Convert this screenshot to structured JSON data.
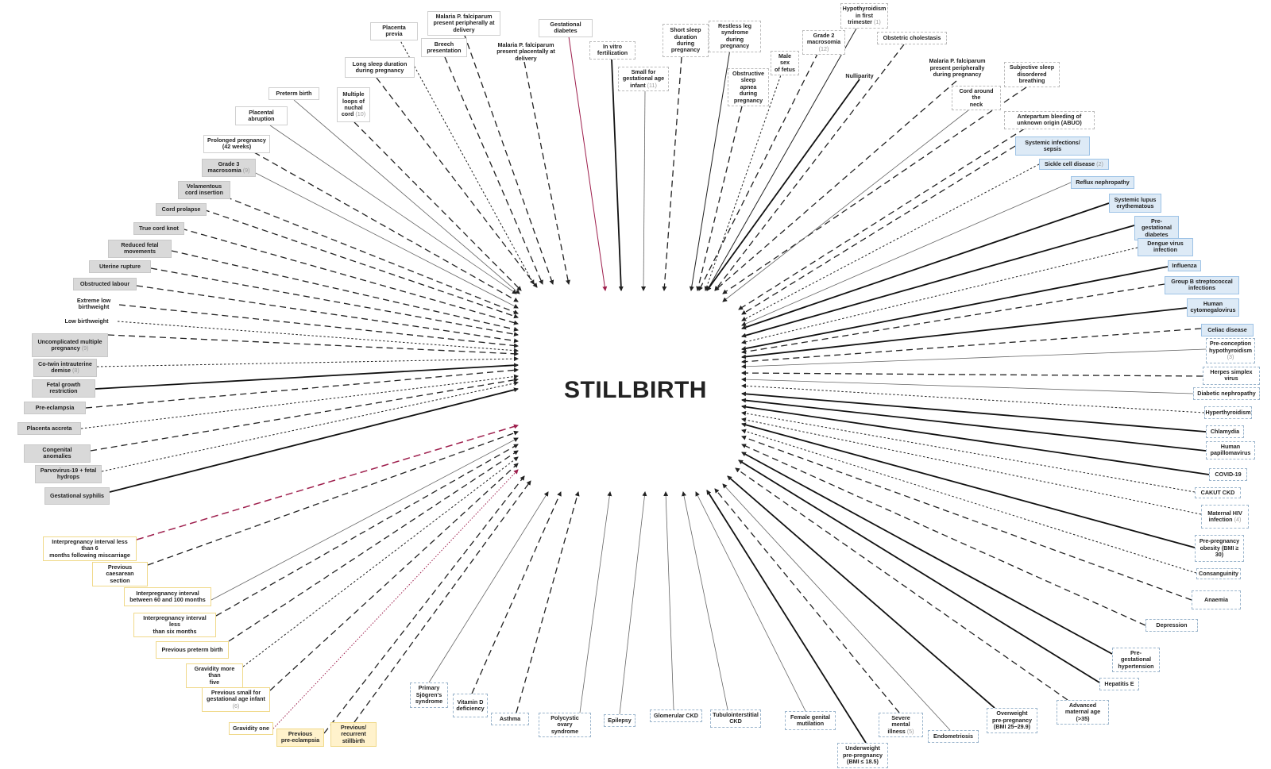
{
  "title": "STILLBIRTH",
  "nodes": {
    "placenta_previa": {
      "label": "Placenta previa"
    },
    "malaria_peripheral_delivery": {
      "label": "Malaria P. falciparum\npresent peripherally at\ndelivery"
    },
    "gestational_diabetes": {
      "label": "Gestational\ndiabetes"
    },
    "breech": {
      "label": "Breech\npresentation"
    },
    "malaria_placental": {
      "label": "Malaria P. falciparum\npresent placentally at\ndelivery"
    },
    "ivf": {
      "label": "In vitro\nfertilization"
    },
    "short_sleep": {
      "label": "Short sleep\nduration\nduring\npregnancy"
    },
    "restless_leg": {
      "label": "Restless leg\nsyndrome during\npregnancy"
    },
    "hypothyroidism_first": {
      "label": "Hypothyroidism\nin first\ntrimester",
      "count": "(1)"
    },
    "grade2_macrosomia": {
      "label": "Grade 2\nmacrosomia",
      "count": "(12)"
    },
    "obstetric_cholestasis": {
      "label": "Obstetric cholestasis"
    },
    "long_sleep": {
      "label": "Long sleep duration\nduring pregnancy"
    },
    "sga": {
      "label": "Small for\ngestational age\ninfant",
      "count": "(11)"
    },
    "male_sex": {
      "label": "Male sex\nof fetus"
    },
    "osa": {
      "label": "Obstructive\nsleep\napnea\nduring\npregnancy"
    },
    "nulliparity": {
      "label": "Nulliparity"
    },
    "malaria_peripheral_pregnancy": {
      "label": "Malaria P. falciparum\npresent peripherally\nduring pregnancy"
    },
    "subjective_sleep": {
      "label": "Subjective sleep\ndisordered\nbreathing"
    },
    "preterm_birth": {
      "label": "Preterm birth"
    },
    "multiple_loops": {
      "label": "Multiple\nloops of\nnuchal\ncord",
      "count": "(10)"
    },
    "cord_around_neck": {
      "label": "Cord around the\nneck"
    },
    "abuo": {
      "label": "Antepartum bleeding of\nunknown origin (ABUO)"
    },
    "placental_abruption": {
      "label": "Placental\nabruption"
    },
    "prolonged_pregnancy": {
      "label": "Prolonged pregnancy\n(42 weeks)"
    },
    "grade3_macrosomia": {
      "label": "Grade 3\nmacrosomia",
      "count": "(9)"
    },
    "velamentous": {
      "label": "Velamentous\ncord insertion"
    },
    "cord_prolapse": {
      "label": "Cord prolapse"
    },
    "true_knot": {
      "label": "True cord knot"
    },
    "reduced_movements": {
      "label": "Reduced fetal\nmovements"
    },
    "uterine_rupture": {
      "label": "Uterine rupture"
    },
    "obstructed_labour": {
      "label": "Obstructed labour"
    },
    "extreme_lbw": {
      "label": "Extreme low\nbirthweight"
    },
    "lbw": {
      "label": "Low birthweight"
    },
    "uncomplicated_multiple": {
      "label": "Uncomplicated multiple\npregnancy",
      "count": "(9)"
    },
    "cotwin_demise": {
      "label": "Co-twin intrauterine\ndemise",
      "count": "(8)"
    },
    "fgr": {
      "label": "Fetal growth\nrestriction"
    },
    "preeclampsia": {
      "label": "Pre-eclampsia"
    },
    "placenta_accreta": {
      "label": "Placenta accreta"
    },
    "congenital_anomalies": {
      "label": "Congenital anomalies"
    },
    "parvovirus": {
      "label": "Parvovirus-19 + fetal\nhydrops"
    },
    "gestational_syphilis": {
      "label": "Gestational syphilis"
    },
    "systemic_infections": {
      "label": "Systemic infections/\nsepsis"
    },
    "sickle_cell": {
      "label": "Sickle cell disease",
      "count": "(2)"
    },
    "reflux_nephropathy": {
      "label": "Reflux nephropathy"
    },
    "sle": {
      "label": "Systemic lupus\nerythematous"
    },
    "pregestational_diabetes": {
      "label": "Pre-gestational\ndiabetes"
    },
    "dengue": {
      "label": "Dengue virus\ninfection"
    },
    "influenza": {
      "label": "Influenza"
    },
    "gbs": {
      "label": "Group B streptococcal\ninfections"
    },
    "cmv": {
      "label": "Human\ncytomegalovirus"
    },
    "celiac": {
      "label": "Celiac disease"
    },
    "preconception_hypo": {
      "label": "Pre-conception\nhypothyroidism",
      "count": "(3)"
    },
    "herpes": {
      "label": "Herpes simplex\nvirus"
    },
    "diabetic_nephropathy": {
      "label": "Diabetic nephropathy"
    },
    "hyperthyroidism": {
      "label": "Hyperthyroidism"
    },
    "chlamydia": {
      "label": "Chlamydia"
    },
    "hpv": {
      "label": "Human\npapillomavirus"
    },
    "covid": {
      "label": "COVID-19"
    },
    "cakut": {
      "label": "CAKUT CKD"
    },
    "hiv": {
      "label": "Maternal HIV\ninfection",
      "count": "(4)"
    },
    "obesity": {
      "label": "Pre-pregnancy\nobesity (BMI ≥\n30)"
    },
    "consanguinity": {
      "label": "Consanguinity"
    },
    "anaemia": {
      "label": "Anaemia"
    },
    "depression": {
      "label": "Depression"
    },
    "pregest_hypertension": {
      "label": "Pre-gestational\nhypertension"
    },
    "hepatitis_e": {
      "label": "Hepatitis E"
    },
    "advanced_age": {
      "label": "Advanced\nmaternal age (>35)"
    },
    "overweight": {
      "label": "Overweight\npre-pregnancy\n(BMI 25−29.9)"
    },
    "endometriosis": {
      "label": "Endometriosis"
    },
    "underweight": {
      "label": "Underweight\npre-pregnancy\n(BMI ≤ 18.5)"
    },
    "severe_mental": {
      "label": "Severe mental\nillness",
      "count": "(5)"
    },
    "fgm": {
      "label": "Female genital\nmutilation"
    },
    "tubulointerstitial": {
      "label": "Tubulointerstitial\nCKD"
    },
    "glomerular": {
      "label": "Glomerular CKD"
    },
    "epilepsy": {
      "label": "Epilepsy"
    },
    "pcos": {
      "label": "Polycystic ovary\nsyndrome"
    },
    "asthma": {
      "label": "Asthma"
    },
    "vitd": {
      "label": "Vitamin D\ndeficiency"
    },
    "sjogren": {
      "label": "Primary\nSjögren's\nsyndrome"
    },
    "ipi_miscarriage": {
      "label": "Interpregnancy interval less than 6\nmonths following miscarriage"
    },
    "prev_cs": {
      "label": "Previous\ncaesarean section"
    },
    "ipi_60_100": {
      "label": "Interpregnancy interval\nbetween 60 and 100 months"
    },
    "ipi_6": {
      "label": "Interpregnancy interval less\nthan six months"
    },
    "prev_preterm": {
      "label": "Previous preterm birth"
    },
    "gravidity_five": {
      "label": "Gravidity more than\nfive"
    },
    "prev_sga": {
      "label": "Previous small for\ngestational age infant",
      "count": "(6)"
    },
    "gravidity_one": {
      "label": "Gravidity one"
    },
    "prev_preeclampsia": {
      "label": "Previous\npre-eclampsia"
    },
    "prev_stillbirth": {
      "label": "Previous/\nrecurrent\nstillbirth"
    }
  },
  "colors": {
    "line": "#222222",
    "line_gray": "#777777",
    "line_crimson": "#9e1f4d",
    "gray_fill": "#d9d9d9",
    "blue_fill": "#ddeaf6",
    "yellow_fill": "#fff2cc"
  }
}
